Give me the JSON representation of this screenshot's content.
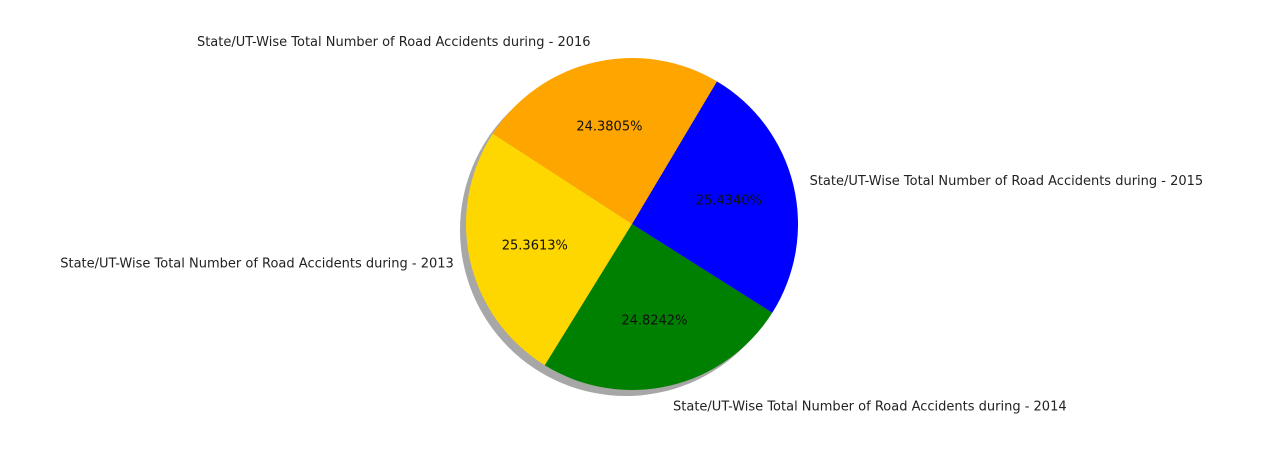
{
  "chart_data": {
    "type": "pie",
    "title": "",
    "start_angle_deg": 147,
    "direction": "counterclockwise",
    "shadow": true,
    "slices": [
      {
        "label": "State/UT-Wise Total Number of Road Accidents during - 2013",
        "value": 25.3613,
        "pct_label": "25.3613%",
        "color": "#FFD700"
      },
      {
        "label": "State/UT-Wise Total Number of Road Accidents during - 2014",
        "value": 24.8242,
        "pct_label": "24.8242%",
        "color": "#008000"
      },
      {
        "label": "State/UT-Wise Total Number of Road Accidents during - 2015",
        "value": 25.434,
        "pct_label": "25.4340%",
        "color": "#0000FF"
      },
      {
        "label": "State/UT-Wise Total Number of Road Accidents during - 2016",
        "value": 24.3805,
        "pct_label": "24.3805%",
        "color": "#FFA500"
      }
    ]
  }
}
